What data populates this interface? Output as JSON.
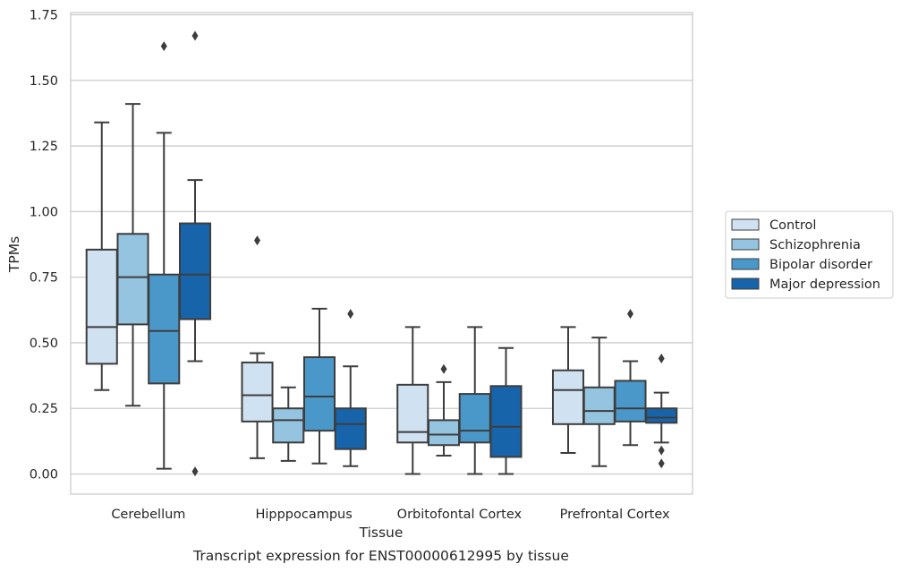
{
  "chart_data": {
    "type": "boxplot",
    "title": "Transcript expression for ENST00000612995 by tissue",
    "xlabel": "Tissue",
    "ylabel": "TPMs",
    "ylim": [
      -0.08,
      1.75
    ],
    "yticks": [
      "0.00",
      "0.25",
      "0.50",
      "0.75",
      "1.00",
      "1.25",
      "1.50",
      "1.75"
    ],
    "ytick_values": [
      0,
      0.25,
      0.5,
      0.75,
      1.0,
      1.25,
      1.5,
      1.75
    ],
    "grid": "horizontal",
    "legend_position": "right",
    "categories": [
      "Cerebellum",
      "Hipppocampus",
      "Orbitofontal Cortex",
      "Prefrontal Cortex"
    ],
    "series": [
      {
        "name": "Control",
        "color": "#d0e1f2",
        "boxes": [
          {
            "whislo": 0.32,
            "q1": 0.42,
            "med": 0.56,
            "q3": 0.855,
            "whishi": 1.34,
            "fliers": []
          },
          {
            "whislo": 0.06,
            "q1": 0.2,
            "med": 0.3,
            "q3": 0.425,
            "whishi": 0.46,
            "fliers": [
              0.89
            ]
          },
          {
            "whislo": 0.0,
            "q1": 0.12,
            "med": 0.16,
            "q3": 0.34,
            "whishi": 0.56,
            "fliers": []
          },
          {
            "whislo": 0.08,
            "q1": 0.19,
            "med": 0.32,
            "q3": 0.395,
            "whishi": 0.56,
            "fliers": []
          }
        ]
      },
      {
        "name": "Schizophrenia",
        "color": "#94c4df",
        "boxes": [
          {
            "whislo": 0.26,
            "q1": 0.57,
            "med": 0.75,
            "q3": 0.915,
            "whishi": 1.41,
            "fliers": []
          },
          {
            "whislo": 0.05,
            "q1": 0.12,
            "med": 0.205,
            "q3": 0.25,
            "whishi": 0.33,
            "fliers": []
          },
          {
            "whislo": 0.07,
            "q1": 0.11,
            "med": 0.15,
            "q3": 0.205,
            "whishi": 0.35,
            "fliers": [
              0.4
            ]
          },
          {
            "whislo": 0.03,
            "q1": 0.19,
            "med": 0.24,
            "q3": 0.33,
            "whishi": 0.52,
            "fliers": []
          }
        ]
      },
      {
        "name": "Bipolar disorder",
        "color": "#4a98c9",
        "boxes": [
          {
            "whislo": 0.02,
            "q1": 0.345,
            "med": 0.545,
            "q3": 0.76,
            "whishi": 1.3,
            "fliers": [
              1.63
            ]
          },
          {
            "whislo": 0.04,
            "q1": 0.165,
            "med": 0.295,
            "q3": 0.445,
            "whishi": 0.63,
            "fliers": []
          },
          {
            "whislo": 0.0,
            "q1": 0.12,
            "med": 0.165,
            "q3": 0.305,
            "whishi": 0.56,
            "fliers": []
          },
          {
            "whislo": 0.11,
            "q1": 0.2,
            "med": 0.25,
            "q3": 0.355,
            "whishi": 0.43,
            "fliers": [
              0.61
            ]
          }
        ]
      },
      {
        "name": "Major depression",
        "color": "#1764ab",
        "boxes": [
          {
            "whislo": 0.43,
            "q1": 0.59,
            "med": 0.76,
            "q3": 0.955,
            "whishi": 1.12,
            "fliers": [
              1.67,
              0.01
            ]
          },
          {
            "whislo": 0.03,
            "q1": 0.095,
            "med": 0.19,
            "q3": 0.25,
            "whishi": 0.41,
            "fliers": [
              0.61
            ]
          },
          {
            "whislo": 0.0,
            "q1": 0.065,
            "med": 0.18,
            "q3": 0.335,
            "whishi": 0.48,
            "fliers": []
          },
          {
            "whislo": 0.12,
            "q1": 0.195,
            "med": 0.215,
            "q3": 0.25,
            "whishi": 0.31,
            "fliers": [
              0.44,
              0.09,
              0.04
            ]
          }
        ]
      }
    ]
  }
}
